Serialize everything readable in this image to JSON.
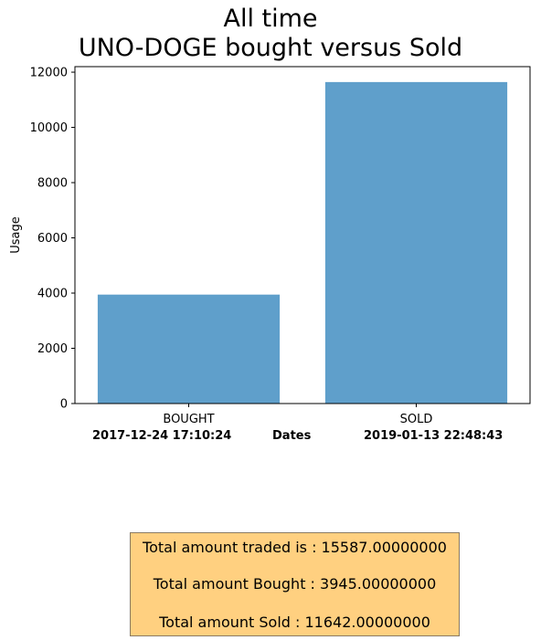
{
  "title_line1": "All time",
  "title_line2": "UNO-DOGE bought versus Sold",
  "x_bottom": {
    "left_date": "2017-12-24 17:10:24",
    "center_label": "Dates",
    "right_date": "2019-01-13 22:48:43"
  },
  "summary": {
    "total": "Total amount traded is : 15587.00000000",
    "bought": "Total amount Bought : 3945.00000000",
    "sold": "Total amount Sold : 11642.00000000"
  },
  "chart_data": {
    "type": "bar",
    "categories": [
      "BOUGHT",
      "SOLD"
    ],
    "values": [
      3945,
      11642
    ],
    "title": "All time UNO-DOGE bought versus Sold",
    "xlabel": "Dates",
    "ylabel": "Usage",
    "ylim": [
      0,
      12200
    ],
    "yticks": [
      0,
      2000,
      4000,
      6000,
      8000,
      10000,
      12000
    ],
    "bar_color": "#5f9fcb",
    "grid": false
  }
}
